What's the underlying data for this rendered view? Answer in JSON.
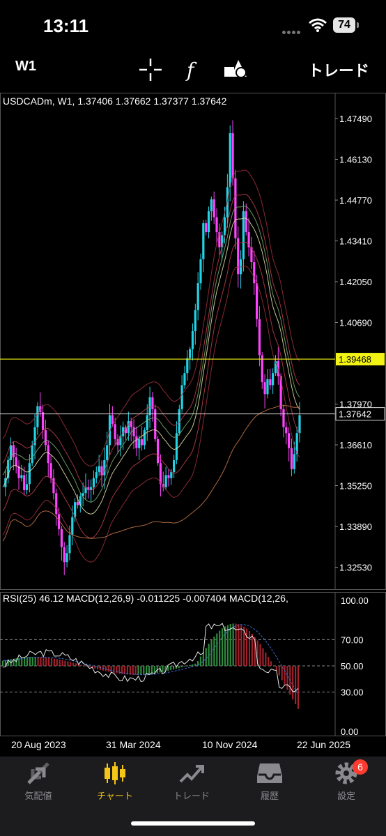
{
  "status": {
    "time": "13:11",
    "battery": "74"
  },
  "toolbar": {
    "timeframe": "W1",
    "crosshair_icon": "crosshair-icon",
    "indicator_icon": "function-icon",
    "objects_icon": "shapes-icon",
    "trade_label": "トレード"
  },
  "chart": {
    "title": "USDCADm, W1, 1.37406 1.37662 1.37377 1.37642",
    "price_levels": [
      "1.47490",
      "1.46130",
      "1.44770",
      "1.43410",
      "1.42050",
      "1.40690",
      "1.39468",
      "1.37970",
      "1.37642",
      "1.36610",
      "1.35250",
      "1.33890",
      "1.32530"
    ],
    "line_yellow_label": "1.39468",
    "current_price_label": "1.37642",
    "colors": {
      "bull": "#22d3e6",
      "bear": "#ff44ff",
      "hline": "#f2f215",
      "bg": "#000000"
    }
  },
  "indicator": {
    "title": "RSI(25) 46.12 MACD(12,26,9) -0.011225 -0.007404 MACD(12,26,",
    "levels": [
      "100.00",
      "70.00",
      "50.00",
      "30.00",
      "0.00"
    ]
  },
  "dates": [
    "20 Aug 2023",
    "31 Mar 2024",
    "10 Nov 2024",
    "22 Jun 2025"
  ],
  "nav": {
    "items": [
      {
        "label": "気配値"
      },
      {
        "label": "チャート"
      },
      {
        "label": "トレード"
      },
      {
        "label": "履歴"
      },
      {
        "label": "設定"
      }
    ],
    "badge": "6"
  }
}
